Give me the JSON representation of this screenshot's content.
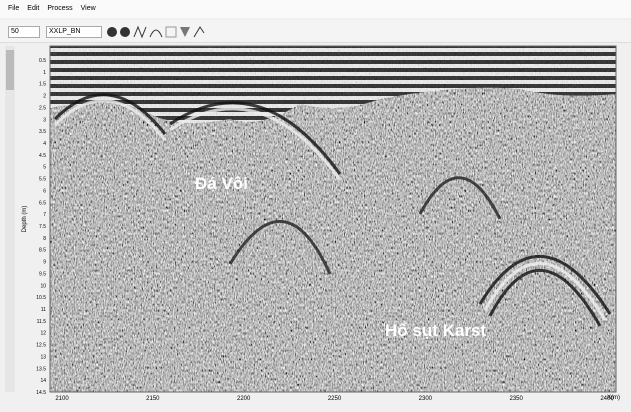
{
  "menu": {
    "items": [
      "File",
      "Edit",
      "Process",
      "View"
    ]
  },
  "toolbar": {
    "field": "50",
    "profile": "XXLP_BN"
  },
  "radargram": {
    "y_axis_label": "Depth (m)",
    "y_ticks": [
      "0.5",
      "1",
      "1.5",
      "2",
      "2.5",
      "3",
      "3.5",
      "4",
      "4.5",
      "5",
      "5.5",
      "6",
      "6.5",
      "7",
      "7.5",
      "8",
      "8.5",
      "9",
      "9.5",
      "10",
      "10.5",
      "11",
      "11.5",
      "12",
      "12.5",
      "13",
      "13.5",
      "14",
      "14.5"
    ],
    "x_ticks": [
      "2100",
      "2150",
      "2200",
      "2250",
      "2300",
      "2350",
      "2400"
    ],
    "x_axis_label": "X(m)",
    "annotations": [
      "Đá Vôi",
      "Hố sụt Karst"
    ]
  }
}
